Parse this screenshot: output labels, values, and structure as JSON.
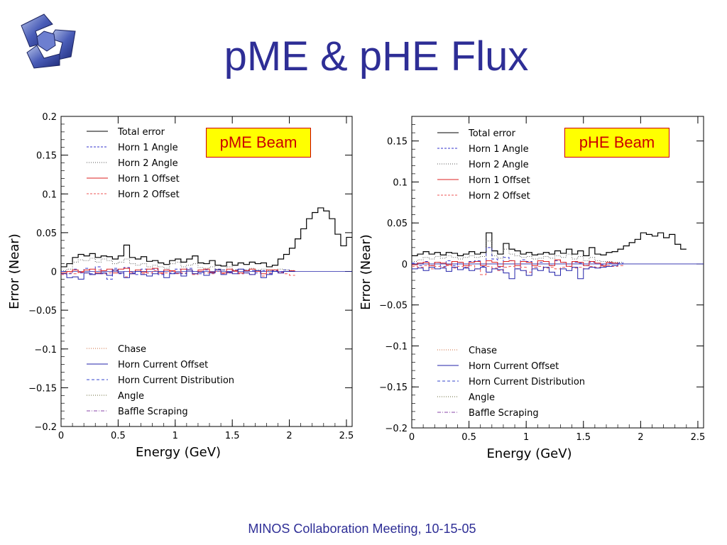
{
  "slide": {
    "title": "pME & pHE Flux",
    "footer": "MINOS Collaboration Meeting, 10-15-05",
    "logo_icon": "minos-logo-icon"
  },
  "chart_data": [
    {
      "type": "line",
      "annotation": "pME Beam",
      "xlabel": "Energy (GeV)",
      "ylabel": "Error (Near)",
      "xlim": [
        0,
        2.55
      ],
      "ylim": [
        -0.2,
        0.2
      ],
      "xticks": [
        "0",
        "0.5",
        "1",
        "1.5",
        "2",
        "2.5"
      ],
      "yticks": [
        "0.2",
        "0.15",
        "0.1",
        "0.05",
        "0",
        "−0.05",
        "−0.1",
        "−0.15",
        "−0.2"
      ],
      "grid": false,
      "legend_top": [
        "Total error",
        "Horn 1 Angle",
        "Horn 2 Angle",
        "Horn 1 Offset",
        "Horn 2 Offset"
      ],
      "legend_bottom": [
        "Chase",
        "Horn Current Offset",
        "Horn Current Distribution",
        "Angle",
        "Baffle Scraping"
      ],
      "series": [
        {
          "name": "Total error",
          "color": "#000000",
          "dash": "",
          "bin_width": 0.05,
          "x_start": 0,
          "values": [
            0.006,
            0.01,
            0.018,
            0.022,
            0.02,
            0.023,
            0.018,
            0.02,
            0.019,
            0.016,
            0.02,
            0.034,
            0.018,
            0.016,
            0.019,
            0.013,
            0.014,
            0.011,
            0.009,
            0.014,
            0.016,
            0.012,
            0.016,
            0.02,
            0.011,
            0.01,
            0.014,
            0.008,
            0.007,
            0.012,
            0.008,
            0.011,
            0.009,
            0.012,
            0.01,
            0.011,
            0.006,
            0.008,
            0.016,
            0.022,
            0.03,
            0.042,
            0.055,
            0.068,
            0.076,
            0.082,
            0.078,
            0.068,
            0.048,
            0.033,
            0.044
          ]
        },
        {
          "name": "Horn 1 Angle",
          "color": "#3333cc",
          "dash": "4,3",
          "bin_width": 0.05,
          "x_start": 0,
          "values": [
            0.0,
            -0.003,
            0.003,
            -0.002,
            0.004,
            -0.003,
            0.006,
            -0.003,
            -0.01,
            0.004,
            -0.003,
            0.005,
            -0.002,
            -0.004,
            0.003,
            -0.002,
            0.003,
            -0.004,
            0.002,
            -0.002,
            0.003,
            -0.003,
            0.004,
            0.0,
            -0.003,
            0.002,
            -0.002,
            0.003,
            0.002,
            -0.002,
            0.002,
            -0.003,
            0.002,
            0.001,
            -0.002,
            0.001,
            -0.003,
            0.001,
            0.0,
            0.002,
            0.0
          ]
        },
        {
          "name": "Horn 2 Angle",
          "color": "#555555",
          "dash": "1,2",
          "bin_width": 0.05,
          "x_start": 0,
          "values": [
            0.001,
            0.003,
            0.012,
            0.015,
            0.014,
            0.017,
            0.012,
            0.016,
            0.014,
            0.01,
            0.012,
            0.016,
            0.01,
            0.008,
            0.01,
            0.006,
            0.008,
            0.006,
            0.004,
            0.01,
            0.012,
            0.006,
            0.008,
            0.01,
            0.005,
            0.004,
            0.006,
            0.003,
            0.002,
            0.006,
            0.002,
            0.003,
            0.002,
            0.004,
            0.002,
            0.003,
            0.001,
            0.002,
            0.003,
            0.002,
            0.001
          ]
        },
        {
          "name": "Horn 1 Offset",
          "color": "#dd2222",
          "dash": "",
          "bin_width": 0.05,
          "x_start": 0,
          "values": [
            -0.002,
            0.0,
            0.002,
            -0.001,
            0.002,
            0.003,
            -0.002,
            0.001,
            0.003,
            -0.002,
            0.003,
            0.004,
            -0.003,
            0.002,
            -0.001,
            0.003,
            0.004,
            -0.002,
            0.002,
            0.001,
            -0.002,
            0.003,
            0.002,
            -0.003,
            0.002,
            0.003,
            -0.001,
            0.002,
            -0.002,
            0.003,
            0.001,
            -0.002,
            0.001,
            0.003,
            0.0,
            -0.003,
            0.002,
            0.002,
            -0.002,
            0.0,
            0.001
          ]
        },
        {
          "name": "Horn 2 Offset",
          "color": "#ee5555",
          "dash": "4,3",
          "bin_width": 0.05,
          "x_start": 0,
          "values": [
            -0.004,
            -0.002,
            -0.003,
            0.0,
            -0.002,
            -0.004,
            0.002,
            -0.003,
            -0.002,
            0.001,
            -0.002,
            -0.007,
            -0.001,
            0.0,
            -0.003,
            -0.002,
            0.001,
            -0.003,
            -0.002,
            0.0,
            -0.003,
            -0.002,
            0.002,
            -0.004,
            0.0,
            -0.002,
            -0.003,
            0.0,
            -0.003,
            -0.002,
            0.0,
            -0.003,
            -0.002,
            -0.004,
            0.0,
            -0.006,
            -0.002,
            0.0,
            -0.001,
            -0.003,
            -0.005
          ]
        },
        {
          "name": "Horn Current Offset",
          "color": "#2222aa",
          "dash": "",
          "bin_width": 0.05,
          "x_start": 0,
          "values": [
            -0.003,
            -0.008,
            -0.007,
            -0.01,
            -0.002,
            -0.004,
            -0.003,
            -0.002,
            -0.005,
            0.002,
            -0.002,
            -0.008,
            -0.003,
            0.0,
            -0.004,
            -0.006,
            -0.003,
            0.0,
            -0.008,
            -0.003,
            -0.002,
            -0.006,
            0.002,
            -0.003,
            -0.001,
            -0.005,
            -0.002,
            0.002,
            -0.004,
            -0.001,
            -0.003,
            0.003,
            -0.002,
            -0.004,
            0.001,
            -0.008,
            -0.004,
            0.0,
            -0.002,
            0.0,
            0.0
          ]
        }
      ]
    },
    {
      "type": "line",
      "annotation": "pHE Beam",
      "xlabel": "Energy (GeV)",
      "ylabel": "Error (Near)",
      "xlim": [
        0,
        2.55
      ],
      "ylim": [
        -0.2,
        0.18
      ],
      "xticks": [
        "0",
        "0.5",
        "1",
        "1.5",
        "2",
        "2.5"
      ],
      "yticks": [
        "0.15",
        "0.1",
        "0.05",
        "0",
        "−0.05",
        "−0.1",
        "−0.15",
        "−0.2"
      ],
      "grid": false,
      "legend_top": [
        "Total error",
        "Horn 1 Angle",
        "Horn 2 Angle",
        "Horn 1 Offset",
        "Horn 2 Offset"
      ],
      "legend_bottom": [
        "Chase",
        "Horn Current Offset",
        "Horn Current Distribution",
        "Angle",
        "Baffle Scraping"
      ],
      "series": [
        {
          "name": "Total error",
          "color": "#000000",
          "dash": "",
          "bin_width": 0.05,
          "x_start": 0,
          "values": [
            0.01,
            0.012,
            0.015,
            0.012,
            0.014,
            0.011,
            0.014,
            0.013,
            0.01,
            0.012,
            0.015,
            0.012,
            0.014,
            0.038,
            0.016,
            0.012,
            0.025,
            0.018,
            0.016,
            0.012,
            0.014,
            0.011,
            0.012,
            0.014,
            0.012,
            0.016,
            0.013,
            0.018,
            0.012,
            0.016,
            0.01,
            0.02,
            0.012,
            0.011,
            0.014,
            0.015,
            0.018,
            0.022,
            0.026,
            0.03,
            0.038,
            0.036,
            0.034,
            0.038,
            0.032,
            0.036,
            0.024,
            0.018
          ]
        },
        {
          "name": "Horn 1 Angle",
          "color": "#3333cc",
          "dash": "4,3",
          "bin_width": 0.05,
          "x_start": 0,
          "values": [
            0.001,
            -0.002,
            0.003,
            -0.002,
            0.002,
            -0.003,
            0.004,
            -0.002,
            0.002,
            -0.004,
            0.003,
            0.004,
            -0.003,
            0.02,
            0.006,
            -0.004,
            0.008,
            0.004,
            -0.006,
            0.005,
            0.003,
            -0.004,
            0.002,
            0.003,
            -0.002,
            0.004,
            0.002,
            -0.003,
            0.002,
            0.001,
            -0.002,
            0.002,
            0.0,
            -0.001,
            0.001,
            0.0,
            0.001
          ]
        },
        {
          "name": "Horn 2 Angle",
          "color": "#555555",
          "dash": "1,2",
          "bin_width": 0.05,
          "x_start": 0,
          "values": [
            0.003,
            0.005,
            0.008,
            0.006,
            0.009,
            0.007,
            0.01,
            0.008,
            0.006,
            0.008,
            0.01,
            0.008,
            0.009,
            0.028,
            0.01,
            0.007,
            0.018,
            0.012,
            0.01,
            0.008,
            0.009,
            0.006,
            0.007,
            0.009,
            0.007,
            0.01,
            0.008,
            0.012,
            0.006,
            0.009,
            0.004,
            0.008,
            0.004,
            0.003,
            0.003,
            0.002,
            0.002
          ]
        },
        {
          "name": "Horn 1 Offset",
          "color": "#dd2222",
          "dash": "",
          "bin_width": 0.05,
          "x_start": 0,
          "values": [
            -0.001,
            0.001,
            0.002,
            -0.002,
            0.002,
            0.001,
            -0.001,
            0.003,
            0.002,
            -0.002,
            0.002,
            0.003,
            -0.002,
            0.004,
            0.002,
            -0.003,
            0.003,
            0.004,
            -0.002,
            0.003,
            0.002,
            -0.002,
            0.004,
            0.003,
            -0.002,
            0.005,
            0.002,
            -0.003,
            0.003,
            0.002,
            -0.002,
            0.003,
            0.001,
            -0.002,
            0.002,
            0.001,
            0.0
          ]
        },
        {
          "name": "Horn 2 Offset",
          "color": "#ee5555",
          "dash": "4,3",
          "bin_width": 0.05,
          "x_start": 0,
          "values": [
            -0.003,
            -0.004,
            -0.002,
            -0.006,
            -0.003,
            -0.004,
            -0.002,
            -0.005,
            -0.003,
            -0.004,
            -0.002,
            -0.006,
            -0.013,
            -0.003,
            -0.005,
            -0.008,
            -0.004,
            -0.003,
            -0.006,
            -0.004,
            -0.01,
            -0.004,
            -0.003,
            -0.005,
            -0.004,
            -0.006,
            -0.004,
            -0.003,
            -0.005,
            -0.004,
            -0.006,
            -0.003,
            -0.004,
            -0.003,
            -0.002,
            -0.003,
            -0.002
          ]
        },
        {
          "name": "Horn Current Offset",
          "color": "#2222aa",
          "dash": "",
          "bin_width": 0.05,
          "x_start": 0,
          "values": [
            -0.006,
            -0.005,
            -0.008,
            -0.004,
            -0.006,
            -0.005,
            -0.009,
            -0.004,
            -0.007,
            -0.005,
            -0.008,
            -0.006,
            -0.004,
            -0.01,
            -0.006,
            -0.007,
            -0.011,
            -0.018,
            -0.006,
            -0.008,
            -0.014,
            -0.006,
            -0.008,
            -0.004,
            -0.01,
            -0.014,
            -0.006,
            -0.008,
            -0.004,
            -0.018,
            -0.006,
            -0.004,
            -0.005,
            -0.004,
            -0.003,
            -0.002,
            0.0
          ]
        }
      ]
    }
  ]
}
